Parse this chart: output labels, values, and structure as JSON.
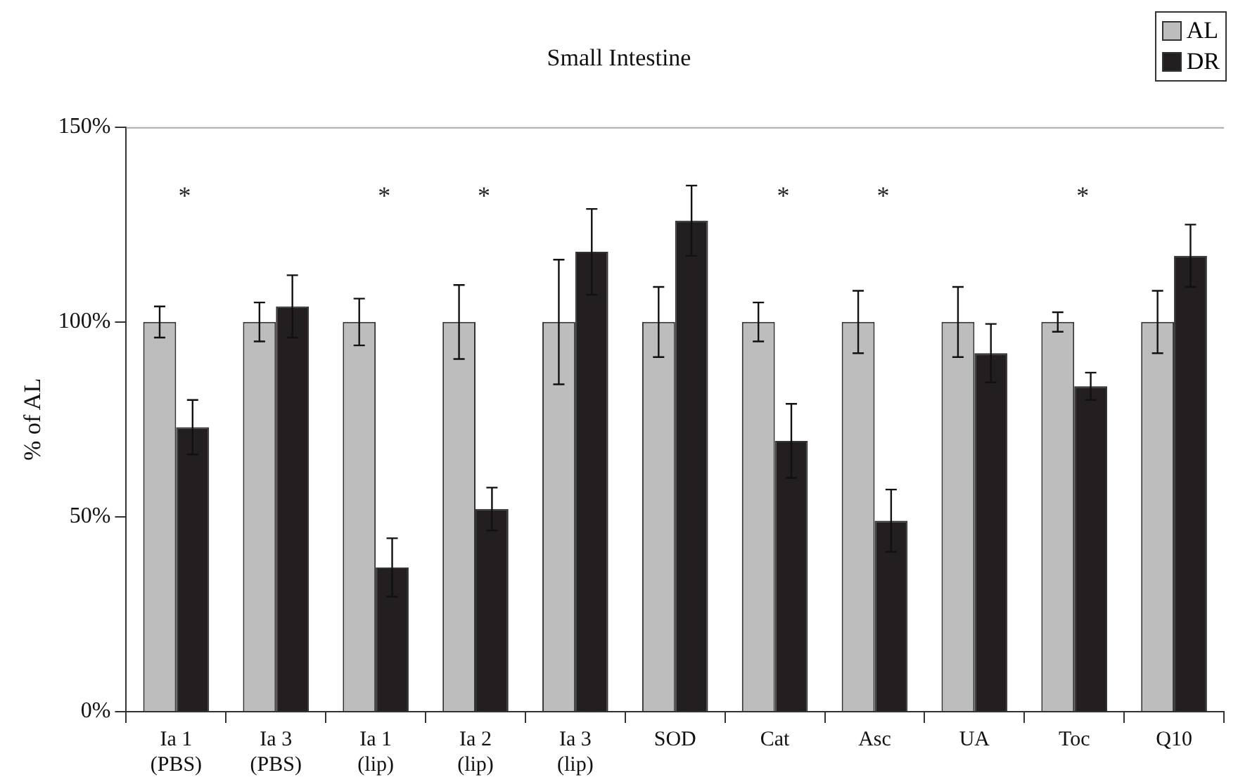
{
  "chart_data": {
    "type": "bar",
    "title": "Small Intestine",
    "ylabel": "% of AL",
    "categories": [
      "Ia 1\n(PBS)",
      "Ia 3\n(PBS)",
      "Ia 1\n(lip)",
      "Ia 2\n(lip)",
      "Ia 3\n(lip)",
      "SOD",
      "Cat",
      "Asc",
      "UA",
      "Toc",
      "Q10"
    ],
    "series": [
      {
        "name": "AL",
        "color": "#bdbdbd",
        "values": [
          100,
          100,
          100,
          100,
          100,
          100,
          100,
          100,
          100,
          100,
          100
        ],
        "errors": [
          4,
          5,
          6,
          9.5,
          16,
          9,
          5,
          8,
          9,
          2.5,
          8
        ]
      },
      {
        "name": "DR",
        "color": "#231f20",
        "values": [
          73,
          104,
          37,
          52,
          118,
          126,
          69.5,
          49,
          92,
          83.5,
          117
        ],
        "errors": [
          7,
          8,
          7.5,
          5.5,
          11,
          9,
          9.5,
          8,
          7.5,
          3.5,
          8
        ]
      }
    ],
    "ylim": [
      0,
      150
    ],
    "yticks": [
      {
        "value": 0,
        "label": "0%"
      },
      {
        "value": 50,
        "label": "50%"
      },
      {
        "value": 100,
        "label": "100%"
      },
      {
        "value": 150,
        "label": "150%"
      }
    ],
    "grid": false,
    "legend": "top right",
    "annotations": [
      "*",
      "*",
      "*",
      "*",
      "*",
      "*"
    ]
  }
}
